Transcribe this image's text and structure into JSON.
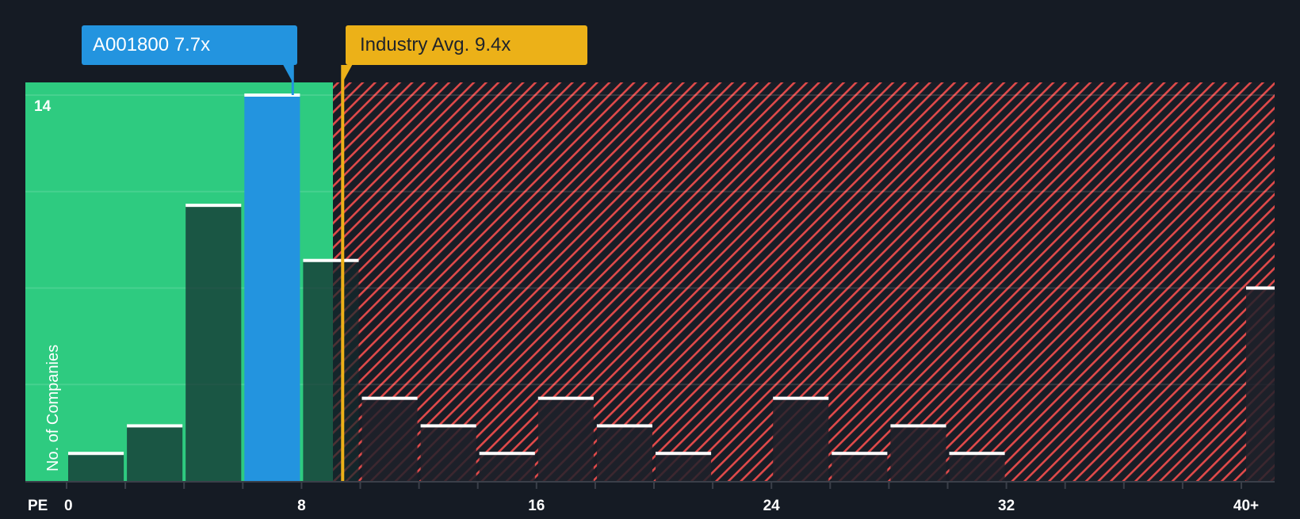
{
  "callouts": {
    "company": {
      "label": "A001800 7.7x",
      "value": 7.7,
      "color": "#2394df"
    },
    "industry": {
      "label": "Industry Avg. 9.4x",
      "value": 9.4,
      "color": "#ecb118"
    }
  },
  "axis": {
    "y_label": "No. of Companies",
    "y_top_tick": "14",
    "x_name": "PE",
    "x_ticks": [
      {
        "label": "0",
        "value": 0
      },
      {
        "label": "8",
        "value": 8
      },
      {
        "label": "16",
        "value": 16
      },
      {
        "label": "24",
        "value": 24
      },
      {
        "label": "32",
        "value": 32
      },
      {
        "label": "40+",
        "value": 40
      }
    ]
  },
  "colors": {
    "background": "#151b24",
    "undervalued_zone": "#2ecb80",
    "overvalued_hatch": "#e04a4a",
    "company_bar": "#2394df",
    "industry_line": "#ecb118"
  },
  "chart_data": {
    "type": "bar",
    "title": "",
    "xlabel": "PE",
    "ylabel": "No. of Companies",
    "categories": [
      "0-2",
      "2-4",
      "4-6",
      "6-8",
      "8-10",
      "10-12",
      "12-14",
      "14-16",
      "16-18",
      "18-20",
      "20-22",
      "22-24",
      "24-26",
      "26-28",
      "28-30",
      "30-32",
      "32-34",
      "34-36",
      "36-38",
      "38-40",
      "40+"
    ],
    "values": [
      1,
      2,
      10,
      14,
      8,
      3,
      2,
      1,
      3,
      2,
      1,
      0,
      3,
      1,
      2,
      1,
      0,
      0,
      0,
      0,
      7
    ],
    "highlight_bin": "6-8",
    "company_pe": 7.7,
    "industry_avg_pe": 9.4,
    "ylim": [
      0,
      14
    ],
    "y_gridlines": [
      0,
      3.5,
      7,
      10.5,
      14
    ],
    "x_ticks": [
      "0",
      "8",
      "16",
      "24",
      "32",
      "40+"
    ],
    "grid": true,
    "legend": null
  }
}
